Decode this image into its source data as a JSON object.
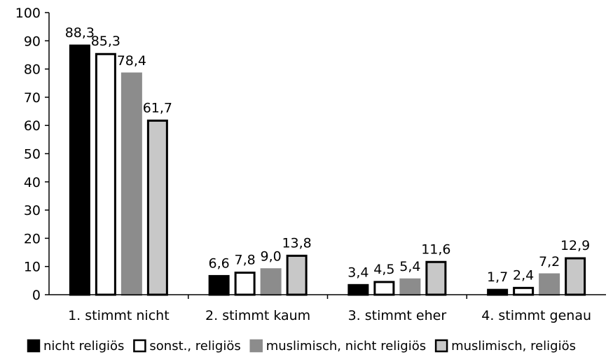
{
  "chart_data": {
    "type": "bar",
    "title": "",
    "xlabel": "",
    "ylabel": "",
    "ylim": [
      0,
      100
    ],
    "y_ticks": [
      0,
      10,
      20,
      30,
      40,
      50,
      60,
      70,
      80,
      90,
      100
    ],
    "y_tick_labels": [
      "0",
      "10",
      "20",
      "30",
      "40",
      "50",
      "60",
      "70",
      "80",
      "90",
      "100"
    ],
    "grid": false,
    "legend_position": "bottom",
    "categories": [
      "1. stimmt nicht",
      "2. stimmt kaum",
      "3. stimmt eher",
      "4. stimmt genau"
    ],
    "series": [
      {
        "name": "nicht religiös",
        "values": [
          88.3,
          6.6,
          3.4,
          1.7
        ],
        "labels": [
          "88,3",
          "6,6",
          "3,4",
          "1,7"
        ],
        "fill": "#000000",
        "stroke": "#000000"
      },
      {
        "name": "sonst., religiös",
        "values": [
          85.3,
          7.8,
          4.5,
          2.4
        ],
        "labels": [
          "85,3",
          "7,8",
          "4,5",
          "2,4"
        ],
        "fill": "#ffffff",
        "stroke": "#000000"
      },
      {
        "name": "muslimisch, nicht religiös",
        "values": [
          78.4,
          9.0,
          5.4,
          7.2
        ],
        "labels": [
          "78,4",
          "9,0",
          "5,4",
          "7,2"
        ],
        "fill": "#8c8c8c",
        "stroke": "#8c8c8c"
      },
      {
        "name": "muslimisch, religiös",
        "values": [
          61.7,
          13.8,
          11.6,
          12.9
        ],
        "labels": [
          "61,7",
          "13,8",
          "11,6",
          "12,9"
        ],
        "fill": "#c8c8c8",
        "stroke": "#000000"
      }
    ]
  }
}
